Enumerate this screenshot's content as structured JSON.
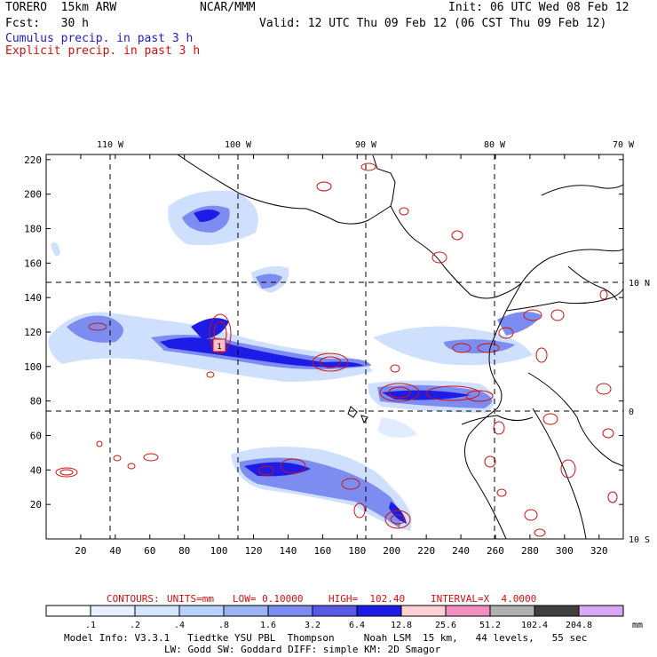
{
  "header": {
    "model": "TORERO  15km ARW",
    "org": "NCAR/MMM",
    "init": "Init: 06 UTC Wed 08 Feb 12",
    "fcst": "Fcst:   30 h",
    "valid": "Valid: 12 UTC Thu 09 Feb 12 (06 CST Thu 09 Feb 12)",
    "cumulus_label": "Cumulus precip. in past 3 h",
    "explicit_label": "Explicit precip. in past 3 h"
  },
  "colors": {
    "cumulus": "#2020c0",
    "explicit": "#d01010"
  },
  "axes": {
    "lon_labels": [
      "110 W",
      "100 W",
      "90 W",
      "80 W",
      "70 W"
    ],
    "lat_labels": [
      "10 N",
      "0",
      "10 S"
    ],
    "x_ticks": [
      "20",
      "40",
      "60",
      "80",
      "100",
      "120",
      "140",
      "160",
      "180",
      "200",
      "220",
      "240",
      "260",
      "280",
      "300",
      "320"
    ],
    "y_ticks": [
      "220",
      "200",
      "180",
      "160",
      "140",
      "120",
      "100",
      "80",
      "60",
      "40",
      "20"
    ]
  },
  "contours": {
    "title": "CONTOURS:",
    "units": "UNITS=mm",
    "low": "LOW= 0.10000",
    "high": "HIGH=  102.40",
    "interval": "INTERVAL=X  4.0000"
  },
  "colorbar": {
    "labels": [
      ".1",
      ".2",
      ".4",
      ".8",
      "1.6",
      "3.2",
      "6.4",
      "12.8",
      "25.6",
      "51.2",
      "102.4",
      "204.8"
    ],
    "colors": [
      "#ffffff",
      "#e8f0ff",
      "#d4e6ff",
      "#b8d2ff",
      "#9bb4f5",
      "#7c8cf0",
      "#5a5ae6",
      "#1c1ce6",
      "#ffd0d4",
      "#f090c0",
      "#b0b0b0",
      "#404040",
      "#d8a8f8"
    ],
    "unit": "mm"
  },
  "footer": {
    "line1": "Model Info: V3.3.1   Tiedtke YSU PBL  Thompson     Noah LSM  15 km,   44 levels,   55 sec",
    "line2": "LW: Godd SW: Goddard DIFF: simple KM: 2D Smagor"
  },
  "storm_marker": "1"
}
